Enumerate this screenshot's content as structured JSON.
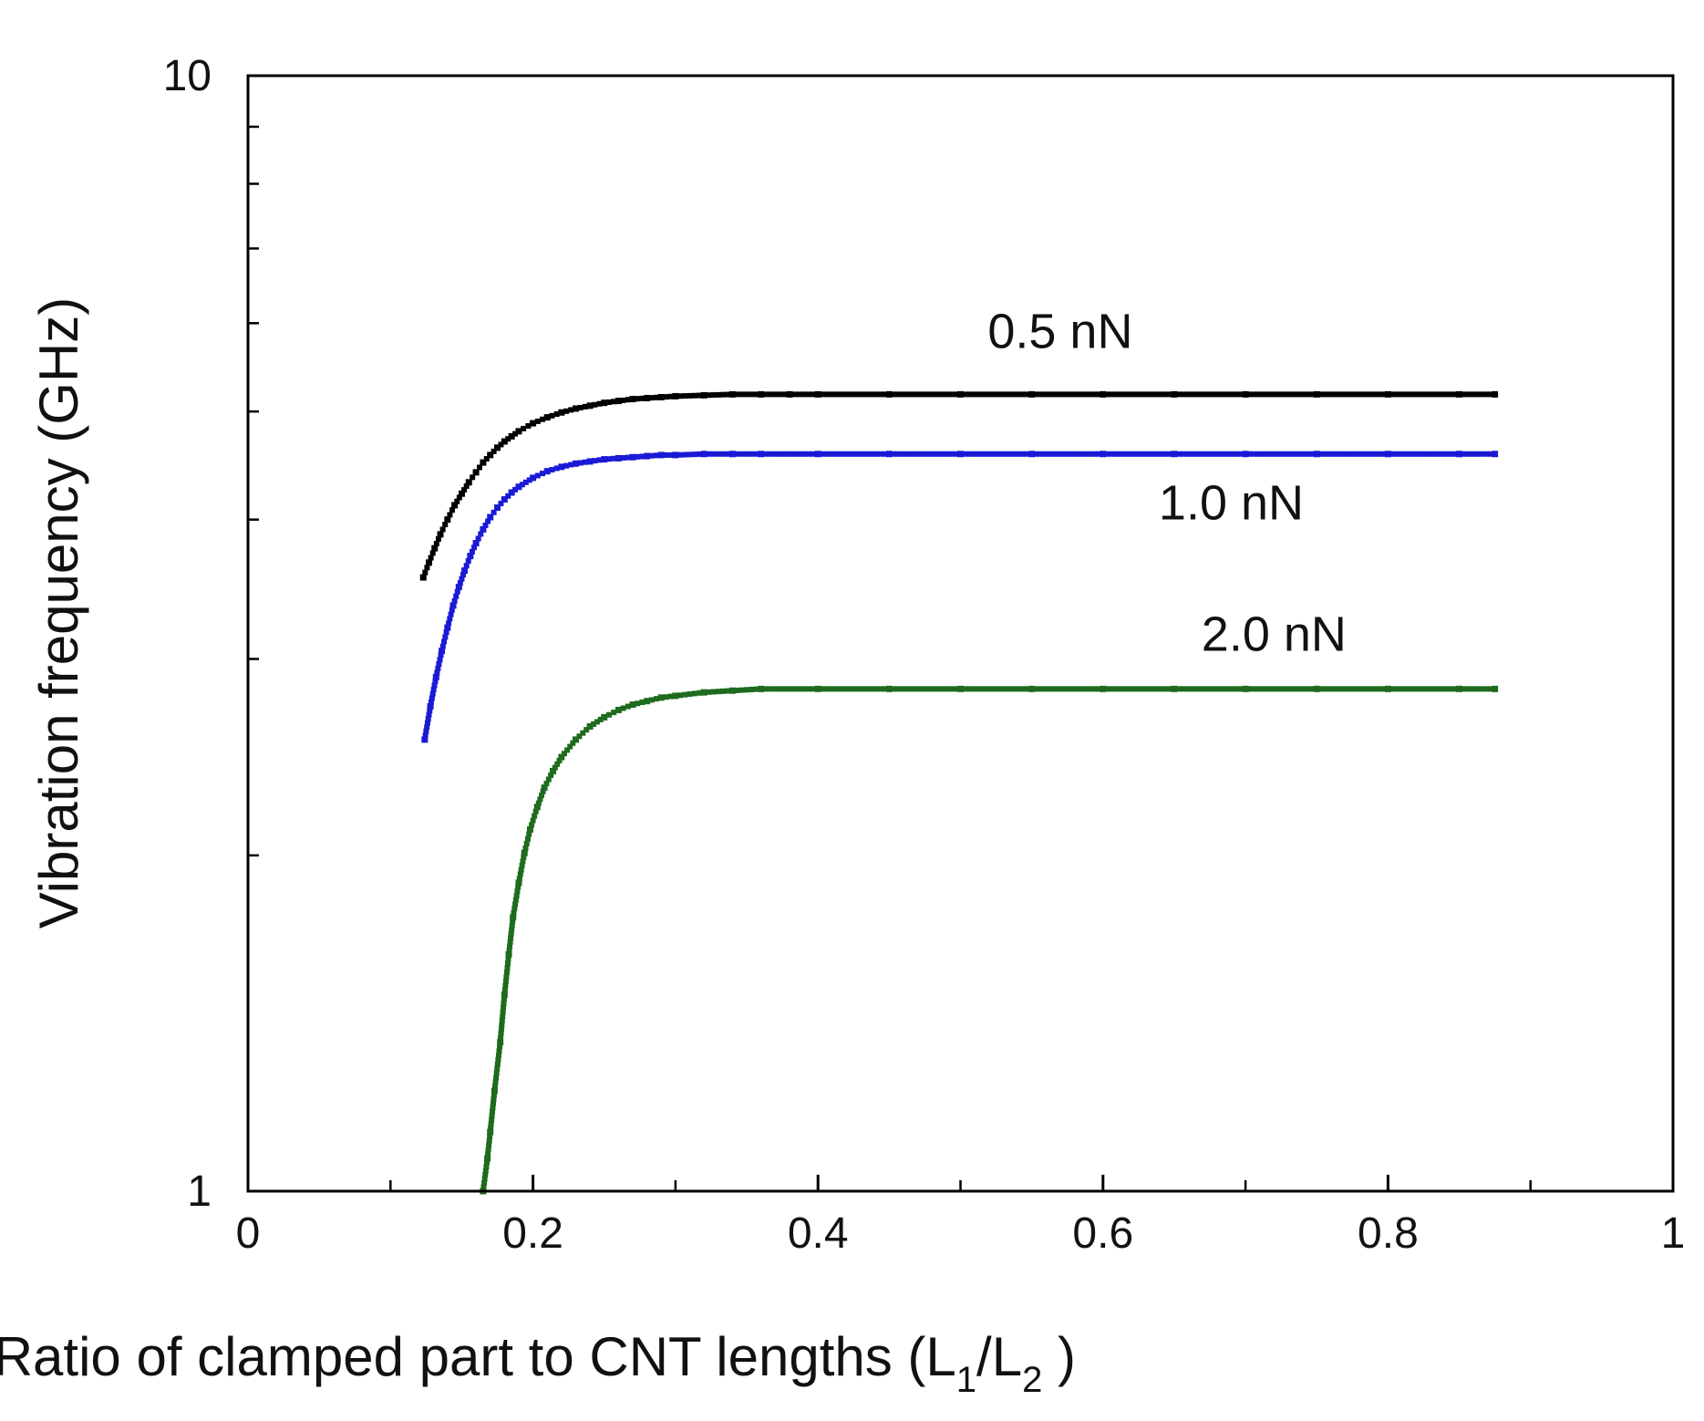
{
  "chart_data": {
    "type": "scatter",
    "title": "",
    "xlabel": "Ratio of clamped part to CNT lengths (L1/L2 )",
    "xlabel_parts": {
      "prefix": "Ratio of clamped part to CNT lengths (L",
      "sub1": "1",
      "slash": "/L",
      "sub2": "2",
      "suffix": " )"
    },
    "ylabel": "Vibration frequency (GHz)",
    "xlim": [
      0,
      1
    ],
    "ylim": [
      1,
      10
    ],
    "yscale": "log",
    "grid": false,
    "x_ticks": [
      {
        "value": 0,
        "label": "0"
      },
      {
        "value": 0.2,
        "label": "0.2"
      },
      {
        "value": 0.4,
        "label": "0.4"
      },
      {
        "value": 0.6,
        "label": "0.6"
      },
      {
        "value": 0.8,
        "label": "0.8"
      },
      {
        "value": 1,
        "label": "1"
      }
    ],
    "x_minor_ticks": [
      0.1,
      0.3,
      0.5,
      0.7,
      0.9
    ],
    "y_ticks": [
      {
        "value": 1,
        "label": "1"
      },
      {
        "value": 10,
        "label": "10"
      }
    ],
    "y_minor_ticks": [
      2,
      3,
      4,
      5,
      6,
      7,
      8,
      9
    ],
    "series": [
      {
        "name": "0.5 nN",
        "color": "#000000",
        "x": [
          0.123,
          0.127,
          0.131,
          0.135,
          0.14,
          0.145,
          0.15,
          0.155,
          0.16,
          0.165,
          0.17,
          0.175,
          0.18,
          0.185,
          0.19,
          0.2,
          0.21,
          0.22,
          0.23,
          0.24,
          0.25,
          0.26,
          0.27,
          0.28,
          0.29,
          0.3,
          0.32,
          0.34,
          0.36,
          0.38,
          0.4,
          0.45,
          0.5,
          0.55,
          0.6,
          0.65,
          0.7,
          0.75,
          0.8,
          0.85,
          0.875
        ],
        "y": [
          3.55,
          3.66,
          3.77,
          3.88,
          4.0,
          4.12,
          4.22,
          4.32,
          4.41,
          4.5,
          4.57,
          4.64,
          4.7,
          4.75,
          4.8,
          4.88,
          4.94,
          4.99,
          5.03,
          5.06,
          5.09,
          5.11,
          5.13,
          5.14,
          5.15,
          5.16,
          5.17,
          5.18,
          5.18,
          5.18,
          5.18,
          5.18,
          5.18,
          5.18,
          5.18,
          5.18,
          5.18,
          5.18,
          5.18,
          5.18,
          5.18
        ]
      },
      {
        "name": "1.0 nN",
        "color": "#1a1ad6",
        "x": [
          0.124,
          0.128,
          0.132,
          0.136,
          0.14,
          0.144,
          0.148,
          0.152,
          0.156,
          0.16,
          0.165,
          0.17,
          0.175,
          0.18,
          0.185,
          0.19,
          0.2,
          0.21,
          0.22,
          0.23,
          0.24,
          0.25,
          0.26,
          0.27,
          0.28,
          0.29,
          0.3,
          0.32,
          0.34,
          0.36,
          0.4,
          0.45,
          0.5,
          0.55,
          0.6,
          0.65,
          0.7,
          0.75,
          0.8,
          0.85,
          0.875
        ],
        "y": [
          2.54,
          2.72,
          2.89,
          3.05,
          3.2,
          3.35,
          3.48,
          3.6,
          3.71,
          3.81,
          3.92,
          4.02,
          4.1,
          4.17,
          4.23,
          4.28,
          4.36,
          4.42,
          4.46,
          4.49,
          4.51,
          4.53,
          4.54,
          4.55,
          4.56,
          4.57,
          4.57,
          4.58,
          4.58,
          4.58,
          4.58,
          4.58,
          4.58,
          4.58,
          4.58,
          4.58,
          4.58,
          4.58,
          4.58,
          4.58,
          4.58
        ]
      },
      {
        "name": "2.0 nN",
        "color": "#1e6b1e",
        "x": [
          0.165,
          0.168,
          0.17,
          0.173,
          0.177,
          0.18,
          0.183,
          0.186,
          0.19,
          0.194,
          0.198,
          0.203,
          0.208,
          0.214,
          0.22,
          0.23,
          0.24,
          0.25,
          0.26,
          0.27,
          0.28,
          0.29,
          0.3,
          0.32,
          0.34,
          0.36,
          0.4,
          0.45,
          0.5,
          0.55,
          0.6,
          0.65,
          0.7,
          0.75,
          0.8,
          0.85,
          0.875
        ],
        "y": [
          1.0,
          1.07,
          1.13,
          1.23,
          1.36,
          1.5,
          1.63,
          1.76,
          1.89,
          2.01,
          2.11,
          2.21,
          2.3,
          2.38,
          2.45,
          2.54,
          2.61,
          2.66,
          2.7,
          2.73,
          2.75,
          2.77,
          2.78,
          2.8,
          2.81,
          2.82,
          2.82,
          2.82,
          2.82,
          2.82,
          2.82,
          2.82,
          2.82,
          2.82,
          2.82,
          2.82,
          2.82
        ]
      }
    ],
    "annotations": [
      {
        "text": "0.5 nN",
        "series": "0.5 nN",
        "x": 0.57,
        "y": 5.7
      },
      {
        "text": "1.0 nN",
        "series": "1.0 nN",
        "x": 0.69,
        "y": 4.0
      },
      {
        "text": "2.0 nN",
        "series": "2.0 nN",
        "x": 0.72,
        "y": 3.05
      }
    ]
  }
}
